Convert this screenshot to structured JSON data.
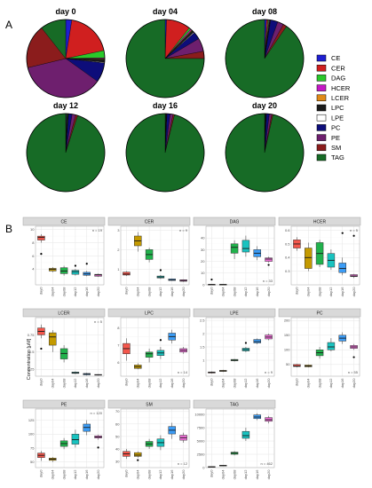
{
  "panel_labels": {
    "a": "A",
    "b": "B"
  },
  "y_axis_label": "Concentration [μM]",
  "lipid_colors": {
    "CE": "#1f1fd1",
    "CER": "#d01f1f",
    "DAG": "#2ac82a",
    "HCER": "#c519c5",
    "LCER": "#e08a17",
    "LPC": "#1a1a1a",
    "LPE": "#ffffff",
    "PC": "#0d0d7a",
    "PE": "#6e1f6e",
    "SM": "#8b1c1c",
    "TAG": "#176b26"
  },
  "day_colors": [
    "#f4564b",
    "#c49a00",
    "#21b24c",
    "#19c3c0",
    "#3b9cf6",
    "#f16ed9"
  ],
  "chart_data": [
    {
      "type": "pie",
      "title": "day 0",
      "slices": [
        {
          "label": "CE",
          "value": 2.5
        },
        {
          "label": "CER",
          "value": 19
        },
        {
          "label": "DAG",
          "value": 3
        },
        {
          "label": "HCER",
          "value": 0.3
        },
        {
          "label": "LCER",
          "value": 0.3
        },
        {
          "label": "LPC",
          "value": 1.2
        },
        {
          "label": "LPE",
          "value": 0.3
        },
        {
          "label": "PC",
          "value": 8
        },
        {
          "label": "PE",
          "value": 36
        },
        {
          "label": "SM",
          "value": 18
        },
        {
          "label": "TAG",
          "value": 10.5
        }
      ]
    },
    {
      "type": "pie",
      "title": "day 04",
      "slices": [
        {
          "label": "CE",
          "value": 0.6
        },
        {
          "label": "CER",
          "value": 10
        },
        {
          "label": "DAG",
          "value": 0.8
        },
        {
          "label": "HCER",
          "value": 0.5
        },
        {
          "label": "LCER",
          "value": 0.3
        },
        {
          "label": "LPC",
          "value": 1
        },
        {
          "label": "LPE",
          "value": 0.3
        },
        {
          "label": "PC",
          "value": 3
        },
        {
          "label": "PE",
          "value": 5.5
        },
        {
          "label": "SM",
          "value": 3
        },
        {
          "label": "TAG",
          "value": 75
        }
      ]
    },
    {
      "type": "pie",
      "title": "day 08",
      "slices": [
        {
          "label": "CE",
          "value": 0.8
        },
        {
          "label": "CER",
          "value": 0.6
        },
        {
          "label": "DAG",
          "value": 0.4
        },
        {
          "label": "HCER",
          "value": 0.3
        },
        {
          "label": "LCER",
          "value": 0.1
        },
        {
          "label": "LPC",
          "value": 0.2
        },
        {
          "label": "LPE",
          "value": 0.1
        },
        {
          "label": "PC",
          "value": 3
        },
        {
          "label": "PE",
          "value": 2.5
        },
        {
          "label": "SM",
          "value": 1.5
        },
        {
          "label": "TAG",
          "value": 90.5
        }
      ]
    },
    {
      "type": "pie",
      "title": "day 12",
      "slices": [
        {
          "label": "CE",
          "value": 0.3
        },
        {
          "label": "CER",
          "value": 0.2
        },
        {
          "label": "DAG",
          "value": 0.3
        },
        {
          "label": "HCER",
          "value": 0.1
        },
        {
          "label": "LCER",
          "value": 0.05
        },
        {
          "label": "LPC",
          "value": 0.1
        },
        {
          "label": "LPE",
          "value": 0.1
        },
        {
          "label": "PC",
          "value": 1.5
        },
        {
          "label": "PE",
          "value": 1.5
        },
        {
          "label": "SM",
          "value": 0.8
        },
        {
          "label": "TAG",
          "value": 95
        }
      ]
    },
    {
      "type": "pie",
      "title": "day 16",
      "slices": [
        {
          "label": "CE",
          "value": 0.2
        },
        {
          "label": "CER",
          "value": 0.1
        },
        {
          "label": "DAG",
          "value": 0.2
        },
        {
          "label": "HCER",
          "value": 0.05
        },
        {
          "label": "LCER",
          "value": 0.02
        },
        {
          "label": "LPC",
          "value": 0.1
        },
        {
          "label": "LPE",
          "value": 0.1
        },
        {
          "label": "PC",
          "value": 1.3
        },
        {
          "label": "PE",
          "value": 1.2
        },
        {
          "label": "SM",
          "value": 0.6
        },
        {
          "label": "TAG",
          "value": 96
        }
      ]
    },
    {
      "type": "pie",
      "title": "day 20",
      "slices": [
        {
          "label": "CE",
          "value": 0.2
        },
        {
          "label": "CER",
          "value": 0.1
        },
        {
          "label": "DAG",
          "value": 0.2
        },
        {
          "label": "HCER",
          "value": 0.05
        },
        {
          "label": "LCER",
          "value": 0.02
        },
        {
          "label": "LPC",
          "value": 0.1
        },
        {
          "label": "LPE",
          "value": 0.1
        },
        {
          "label": "PC",
          "value": 1.2
        },
        {
          "label": "PE",
          "value": 1.0
        },
        {
          "label": "SM",
          "value": 0.5
        },
        {
          "label": "TAG",
          "value": 96.5
        }
      ]
    },
    {
      "type": "box",
      "title": "CE",
      "n_label": "n = 19",
      "categories": [
        "day0",
        "day04",
        "day08",
        "day12",
        "day16",
        "day20"
      ],
      "ylim": [
        1.6,
        10.5
      ],
      "yticks": [
        4,
        6,
        8,
        10
      ],
      "boxes": [
        {
          "q1": 8.4,
          "med": 8.8,
          "q3": 9.0,
          "lo": 8.0,
          "hi": 9.3,
          "out": [
            6.3
          ]
        },
        {
          "q1": 3.7,
          "med": 3.95,
          "q3": 4.1,
          "lo": 3.5,
          "hi": 4.3,
          "out": []
        },
        {
          "q1": 3.3,
          "med": 3.7,
          "q3": 4.2,
          "lo": 3.0,
          "hi": 4.5,
          "out": []
        },
        {
          "q1": 3.2,
          "med": 3.6,
          "q3": 3.8,
          "lo": 3.0,
          "hi": 4.0,
          "out": [
            4.5
          ]
        },
        {
          "q1": 3.05,
          "med": 3.25,
          "q3": 3.5,
          "lo": 2.9,
          "hi": 3.7,
          "out": [
            4.8
          ]
        },
        {
          "q1": 2.9,
          "med": 3.1,
          "q3": 3.2,
          "lo": 2.8,
          "hi": 3.3,
          "out": []
        }
      ]
    },
    {
      "type": "box",
      "title": "CER",
      "n_label": "n = 9",
      "categories": [
        "day0",
        "day04",
        "day08",
        "day12",
        "day16",
        "day20"
      ],
      "ylim": [
        0.2,
        3.2
      ],
      "yticks": [
        1,
        2,
        3
      ],
      "boxes": [
        {
          "q1": 0.7,
          "med": 0.75,
          "q3": 0.85,
          "lo": 0.65,
          "hi": 0.9,
          "out": []
        },
        {
          "q1": 2.2,
          "med": 2.45,
          "q3": 2.7,
          "lo": 1.9,
          "hi": 2.9,
          "out": []
        },
        {
          "q1": 1.5,
          "med": 1.75,
          "q3": 2.0,
          "lo": 1.35,
          "hi": 2.1,
          "out": []
        },
        {
          "q1": 0.55,
          "med": 0.6,
          "q3": 0.65,
          "lo": 0.5,
          "hi": 0.7,
          "out": [
            0.95
          ]
        },
        {
          "q1": 0.42,
          "med": 0.46,
          "q3": 0.5,
          "lo": 0.4,
          "hi": 0.52,
          "out": []
        },
        {
          "q1": 0.38,
          "med": 0.42,
          "q3": 0.46,
          "lo": 0.35,
          "hi": 0.48,
          "out": []
        }
      ]
    },
    {
      "type": "box",
      "title": "DAG",
      "n_label": "n = 33",
      "categories": [
        "day0",
        "day04",
        "day08",
        "day12",
        "day16",
        "day20"
      ],
      "ylim": [
        0,
        50
      ],
      "yticks": [
        0,
        10,
        20,
        30,
        40
      ],
      "boxes": [
        {
          "q1": 0.2,
          "med": 0.3,
          "q3": 0.4,
          "lo": 0.1,
          "hi": 0.5,
          "out": [
            4.5
          ]
        },
        {
          "q1": 0.2,
          "med": 0.3,
          "q3": 0.4,
          "lo": 0.1,
          "hi": 0.5,
          "out": []
        },
        {
          "q1": 27,
          "med": 32,
          "q3": 35,
          "lo": 22,
          "hi": 38,
          "out": []
        },
        {
          "q1": 28,
          "med": 31,
          "q3": 38,
          "lo": 24,
          "hi": 42,
          "out": []
        },
        {
          "q1": 24,
          "med": 27,
          "q3": 30,
          "lo": 21,
          "hi": 33,
          "out": []
        },
        {
          "q1": 20,
          "med": 22,
          "q3": 23,
          "lo": 19,
          "hi": 24,
          "out": [
            17
          ]
        }
      ]
    },
    {
      "type": "box",
      "title": "HCER",
      "n_label": "n = 5",
      "categories": [
        "day0",
        "day04",
        "day08",
        "day12",
        "day16",
        "day20"
      ],
      "ylim": [
        0.2,
        0.63
      ],
      "yticks": [
        0.3,
        0.4,
        0.5,
        0.6
      ],
      "boxes": [
        {
          "q1": 0.47,
          "med": 0.5,
          "q3": 0.53,
          "lo": 0.45,
          "hi": 0.55,
          "out": []
        },
        {
          "q1": 0.32,
          "med": 0.4,
          "q3": 0.47,
          "lo": 0.3,
          "hi": 0.51,
          "out": []
        },
        {
          "q1": 0.35,
          "med": 0.43,
          "q3": 0.51,
          "lo": 0.33,
          "hi": 0.53,
          "out": []
        },
        {
          "q1": 0.33,
          "med": 0.38,
          "q3": 0.43,
          "lo": 0.31,
          "hi": 0.46,
          "out": []
        },
        {
          "q1": 0.29,
          "med": 0.32,
          "q3": 0.36,
          "lo": 0.27,
          "hi": 0.4,
          "out": [
            0.58
          ]
        },
        {
          "q1": 0.26,
          "med": 0.265,
          "q3": 0.275,
          "lo": 0.25,
          "hi": 0.28,
          "out": [
            0.56
          ]
        }
      ]
    },
    {
      "type": "box",
      "title": "LCER",
      "n_label": "n = 5",
      "categories": [
        "day0",
        "day04",
        "day08",
        "day12",
        "day16",
        "day20"
      ],
      "ylim": [
        0.15,
        1.0
      ],
      "yticks": [
        0.25,
        0.5,
        0.75
      ],
      "boxes": [
        {
          "q1": 0.75,
          "med": 0.8,
          "q3": 0.85,
          "lo": 0.7,
          "hi": 0.9,
          "out": [
            0.55
          ]
        },
        {
          "q1": 0.6,
          "med": 0.72,
          "q3": 0.78,
          "lo": 0.5,
          "hi": 0.82,
          "out": []
        },
        {
          "q1": 0.4,
          "med": 0.48,
          "q3": 0.55,
          "lo": 0.35,
          "hi": 0.6,
          "out": []
        },
        {
          "q1": 0.19,
          "med": 0.2,
          "q3": 0.21,
          "lo": 0.18,
          "hi": 0.22,
          "out": []
        },
        {
          "q1": 0.17,
          "med": 0.18,
          "q3": 0.19,
          "lo": 0.16,
          "hi": 0.2,
          "out": []
        },
        {
          "q1": 0.165,
          "med": 0.17,
          "q3": 0.175,
          "lo": 0.16,
          "hi": 0.18,
          "out": []
        }
      ]
    },
    {
      "type": "box",
      "title": "LPC",
      "n_label": "n = 14",
      "categories": [
        "day0",
        "day04",
        "day08",
        "day12",
        "day16",
        "day20"
      ],
      "ylim": [
        5.2,
        8.6
      ],
      "yticks": [
        6,
        7,
        8
      ],
      "boxes": [
        {
          "q1": 6.5,
          "med": 6.8,
          "q3": 7.1,
          "lo": 6.1,
          "hi": 7.4,
          "out": []
        },
        {
          "q1": 5.65,
          "med": 5.75,
          "q3": 5.85,
          "lo": 5.6,
          "hi": 5.95,
          "out": []
        },
        {
          "q1": 6.3,
          "med": 6.5,
          "q3": 6.6,
          "lo": 6.0,
          "hi": 6.8,
          "out": []
        },
        {
          "q1": 6.4,
          "med": 6.55,
          "q3": 6.7,
          "lo": 6.2,
          "hi": 6.9,
          "out": [
            7.3
          ]
        },
        {
          "q1": 7.3,
          "med": 7.5,
          "q3": 7.7,
          "lo": 7.1,
          "hi": 7.9,
          "out": []
        },
        {
          "q1": 6.6,
          "med": 6.7,
          "q3": 6.8,
          "lo": 6.5,
          "hi": 6.9,
          "out": []
        }
      ]
    },
    {
      "type": "box",
      "title": "LPE",
      "n_label": "n = 9",
      "categories": [
        "day0",
        "day04",
        "day08",
        "day12",
        "day16",
        "day20"
      ],
      "ylim": [
        0.4,
        2.6
      ],
      "yticks": [
        1.0,
        1.5,
        2.0,
        2.5
      ],
      "boxes": [
        {
          "q1": 0.52,
          "med": 0.54,
          "q3": 0.56,
          "lo": 0.5,
          "hi": 0.58,
          "out": []
        },
        {
          "q1": 0.58,
          "med": 0.6,
          "q3": 0.62,
          "lo": 0.56,
          "hi": 0.64,
          "out": []
        },
        {
          "q1": 0.98,
          "med": 1.0,
          "q3": 1.03,
          "lo": 0.95,
          "hi": 1.05,
          "out": []
        },
        {
          "q1": 1.35,
          "med": 1.4,
          "q3": 1.45,
          "lo": 1.3,
          "hi": 1.5,
          "out": [
            1.65
          ]
        },
        {
          "q1": 1.65,
          "med": 1.7,
          "q3": 1.78,
          "lo": 1.6,
          "hi": 1.82,
          "out": []
        },
        {
          "q1": 1.8,
          "med": 1.87,
          "q3": 1.95,
          "lo": 1.75,
          "hi": 2.0,
          "out": []
        }
      ]
    },
    {
      "type": "box",
      "title": "PC",
      "n_label": "n = 55",
      "categories": [
        "day0",
        "day04",
        "day08",
        "day12",
        "day16",
        "day20"
      ],
      "ylim": [
        10,
        210
      ],
      "yticks": [
        50,
        100,
        150,
        200
      ],
      "boxes": [
        {
          "q1": 43,
          "med": 45,
          "q3": 50,
          "lo": 40,
          "hi": 52,
          "out": []
        },
        {
          "q1": 42,
          "med": 45,
          "q3": 48,
          "lo": 40,
          "hi": 50,
          "out": []
        },
        {
          "q1": 80,
          "med": 90,
          "q3": 100,
          "lo": 70,
          "hi": 110,
          "out": []
        },
        {
          "q1": 100,
          "med": 110,
          "q3": 125,
          "lo": 95,
          "hi": 140,
          "out": []
        },
        {
          "q1": 130,
          "med": 140,
          "q3": 150,
          "lo": 120,
          "hi": 160,
          "out": []
        },
        {
          "q1": 105,
          "med": 110,
          "q3": 115,
          "lo": 100,
          "hi": 120,
          "out": [
            75
          ]
        }
      ]
    },
    {
      "type": "box",
      "title": "PE",
      "n_label": "n = 120",
      "categories": [
        "day0",
        "day04",
        "day08",
        "day12",
        "day16",
        "day20"
      ],
      "ylim": [
        40,
        145
      ],
      "yticks": [
        50,
        75,
        100,
        125
      ],
      "boxes": [
        {
          "q1": 58,
          "med": 62,
          "q3": 66,
          "lo": 52,
          "hi": 70,
          "out": []
        },
        {
          "q1": 53,
          "med": 55,
          "q3": 57,
          "lo": 50,
          "hi": 59,
          "out": []
        },
        {
          "q1": 78,
          "med": 83,
          "q3": 88,
          "lo": 73,
          "hi": 93,
          "out": []
        },
        {
          "q1": 82,
          "med": 90,
          "q3": 100,
          "lo": 76,
          "hi": 108,
          "out": []
        },
        {
          "q1": 105,
          "med": 112,
          "q3": 118,
          "lo": 98,
          "hi": 125,
          "out": []
        },
        {
          "q1": 93,
          "med": 95,
          "q3": 97,
          "lo": 90,
          "hi": 99,
          "out": [
            76
          ]
        }
      ]
    },
    {
      "type": "box",
      "title": "SM",
      "n_label": "n = 12",
      "categories": [
        "day0",
        "day04",
        "day08",
        "day12",
        "day16",
        "day20"
      ],
      "ylim": [
        25,
        72
      ],
      "yticks": [
        30,
        40,
        50,
        60,
        70
      ],
      "boxes": [
        {
          "q1": 34,
          "med": 36,
          "q3": 38,
          "lo": 32,
          "hi": 40,
          "out": []
        },
        {
          "q1": 34,
          "med": 35,
          "q3": 37,
          "lo": 33,
          "hi": 38,
          "out": [
            31
          ]
        },
        {
          "q1": 42,
          "med": 44,
          "q3": 46,
          "lo": 40,
          "hi": 48,
          "out": []
        },
        {
          "q1": 42,
          "med": 45,
          "q3": 48,
          "lo": 39,
          "hi": 51,
          "out": []
        },
        {
          "q1": 52,
          "med": 55,
          "q3": 58,
          "lo": 48,
          "hi": 61,
          "out": []
        },
        {
          "q1": 47,
          "med": 49,
          "q3": 51,
          "lo": 45,
          "hi": 53,
          "out": []
        }
      ]
    },
    {
      "type": "box",
      "title": "TAG",
      "n_label": "n = 462",
      "categories": [
        "day0",
        "day04",
        "day08",
        "day12",
        "day16",
        "day20"
      ],
      "ylim": [
        0,
        11000
      ],
      "yticks": [
        0,
        2500,
        5000,
        7500,
        10000
      ],
      "boxes": [
        {
          "q1": 120,
          "med": 150,
          "q3": 180,
          "lo": 100,
          "hi": 200,
          "out": []
        },
        {
          "q1": 380,
          "med": 400,
          "q3": 430,
          "lo": 360,
          "hi": 450,
          "out": []
        },
        {
          "q1": 2500,
          "med": 2700,
          "q3": 2900,
          "lo": 2300,
          "hi": 3100,
          "out": []
        },
        {
          "q1": 5500,
          "med": 6000,
          "q3": 6800,
          "lo": 5000,
          "hi": 7500,
          "out": []
        },
        {
          "q1": 9200,
          "med": 9500,
          "q3": 9900,
          "lo": 8900,
          "hi": 10200,
          "out": []
        },
        {
          "q1": 8700,
          "med": 9000,
          "q3": 9400,
          "lo": 8300,
          "hi": 9700,
          "out": []
        }
      ]
    }
  ]
}
